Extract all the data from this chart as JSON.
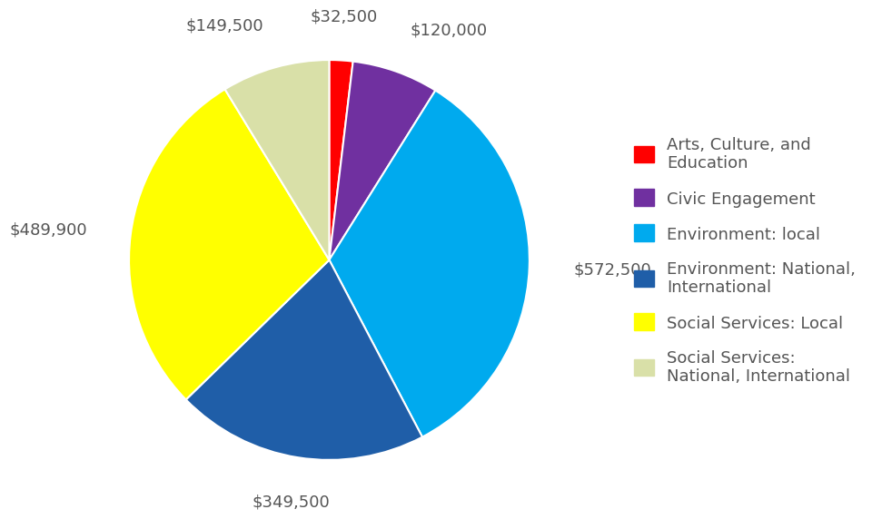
{
  "legend_labels": [
    "Arts, Culture, and\nEducation",
    "Civic Engagement",
    "Environment: local",
    "Environment: National,\nInternational",
    "Social Services: Local",
    "Social Services:\nNational, International"
  ],
  "values": [
    32500,
    120000,
    572500,
    349500,
    489900,
    149500
  ],
  "colors": [
    "#FF0000",
    "#7030A0",
    "#00AAEE",
    "#1F5EA8",
    "#FFFF00",
    "#D9E0A8"
  ],
  "label_values": [
    "$32,500",
    "$120,000",
    "$572,500",
    "$349,500",
    "$489,900",
    "$149,500"
  ],
  "background_color": "#FFFFFF",
  "label_fontsize": 13,
  "legend_fontsize": 13,
  "startangle": 90
}
